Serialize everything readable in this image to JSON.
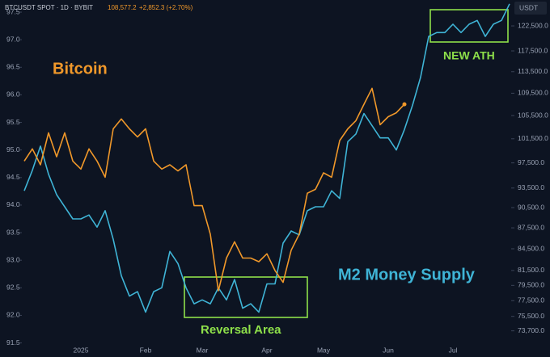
{
  "chart_data": {
    "type": "line",
    "header": {
      "symbol": "BTCUSDT SPOT · 1D · BYBIT",
      "price": "108,577.2",
      "change": "+2,852.3 (+2.70%)"
    },
    "currency": "USDT",
    "annotations": {
      "bitcoin": "Bitcoin",
      "m2": "M2 Money Supply",
      "reversal": "Reversal Area",
      "ath": "NEW ATH"
    },
    "categories": [
      null,
      null,
      null,
      null,
      null,
      null,
      null,
      "2025",
      null,
      null,
      null,
      null,
      null,
      null,
      null,
      "Feb",
      null,
      null,
      null,
      null,
      null,
      null,
      "Mar",
      null,
      null,
      null,
      null,
      null,
      null,
      null,
      "Apr",
      null,
      null,
      null,
      null,
      null,
      null,
      "May",
      null,
      null,
      null,
      null,
      null,
      null,
      null,
      "Jun",
      null,
      null,
      null,
      null,
      null,
      null,
      null,
      "Jul",
      null,
      null,
      null,
      null,
      null,
      null,
      null
    ],
    "series": [
      {
        "name": "M2 Money Supply",
        "color": "#3fb4d6",
        "axis": "y",
        "values": [
          94.26,
          94.63,
          95.07,
          94.56,
          94.19,
          93.97,
          93.75,
          93.75,
          93.82,
          93.6,
          93.9,
          93.38,
          92.72,
          92.35,
          92.43,
          92.06,
          92.43,
          92.5,
          93.16,
          92.94,
          92.5,
          92.21,
          92.28,
          92.21,
          92.5,
          92.28,
          92.65,
          92.13,
          92.21,
          92.06,
          92.57,
          92.57,
          93.31,
          93.53,
          93.46,
          93.9,
          93.97,
          93.97,
          94.26,
          94.12,
          95.15,
          95.29,
          95.66,
          95.44,
          95.22,
          95.22,
          95.0,
          95.37,
          95.81,
          96.32,
          97.06,
          97.13,
          97.13,
          97.28,
          97.13,
          97.28,
          97.35,
          97.06,
          97.28,
          97.35,
          97.65
        ]
      },
      {
        "name": "Bitcoin",
        "color": "#f0982a",
        "axis": "y2",
        "values": [
          97800,
          99800,
          97200,
          102500,
          98500,
          102500,
          97800,
          96500,
          99800,
          97800,
          95200,
          103200,
          104900,
          103200,
          101800,
          103200,
          97800,
          96500,
          97200,
          96200,
          97200,
          90800,
          90800,
          86600,
          78800,
          83200,
          85500,
          83200,
          83200,
          82700,
          83800,
          81500,
          79900,
          84300,
          86600,
          92700,
          93300,
          95900,
          95200,
          101200,
          103200,
          104600,
          107500,
          110400,
          103900,
          105300,
          106000,
          107500,
          null,
          null,
          null,
          null,
          null,
          null,
          null,
          null,
          null,
          null,
          null,
          null,
          null
        ]
      }
    ],
    "ylim": [
      91.45,
      97.72
    ],
    "yticks": [
      91.5,
      {
        "value": 92,
        "label": "92.0"
      },
      92.5,
      {
        "value": 93,
        "label": "93.0"
      },
      93.5,
      {
        "value": 94,
        "label": "94.0"
      },
      94.5,
      {
        "value": 95,
        "label": "95.0"
      },
      95.5,
      {
        "value": 96,
        "label": "96.0"
      },
      96.5,
      {
        "value": 97,
        "label": "97.0"
      },
      97.5
    ],
    "y2lim": [
      71900,
      127900
    ],
    "y2log": true,
    "y2ticks": [
      {
        "value": 73700,
        "label": "73,700.0"
      },
      {
        "value": 75500,
        "label": "75,500.0"
      },
      {
        "value": 77500,
        "label": "77,500.0"
      },
      {
        "value": 79500,
        "label": "79,500.0"
      },
      {
        "value": 81500,
        "label": "81,500.0"
      },
      {
        "value": 84500,
        "label": "84,500.0"
      },
      {
        "value": 87500,
        "label": "87,500.0"
      },
      {
        "value": 90500,
        "label": "90,500.0"
      },
      {
        "value": 93500,
        "label": "93,500.0"
      },
      {
        "value": 97500,
        "label": "97,500.0"
      },
      {
        "value": 101500,
        "label": "101,500.0"
      },
      {
        "value": 105500,
        "label": "105,500.0"
      },
      {
        "value": 109500,
        "label": "109,500.0"
      },
      {
        "value": 113500,
        "label": "113,500.0"
      },
      {
        "value": 117500,
        "label": "117,500.0"
      },
      {
        "value": 122500,
        "label": "122,500.0"
      }
    ],
    "grid": false
  }
}
